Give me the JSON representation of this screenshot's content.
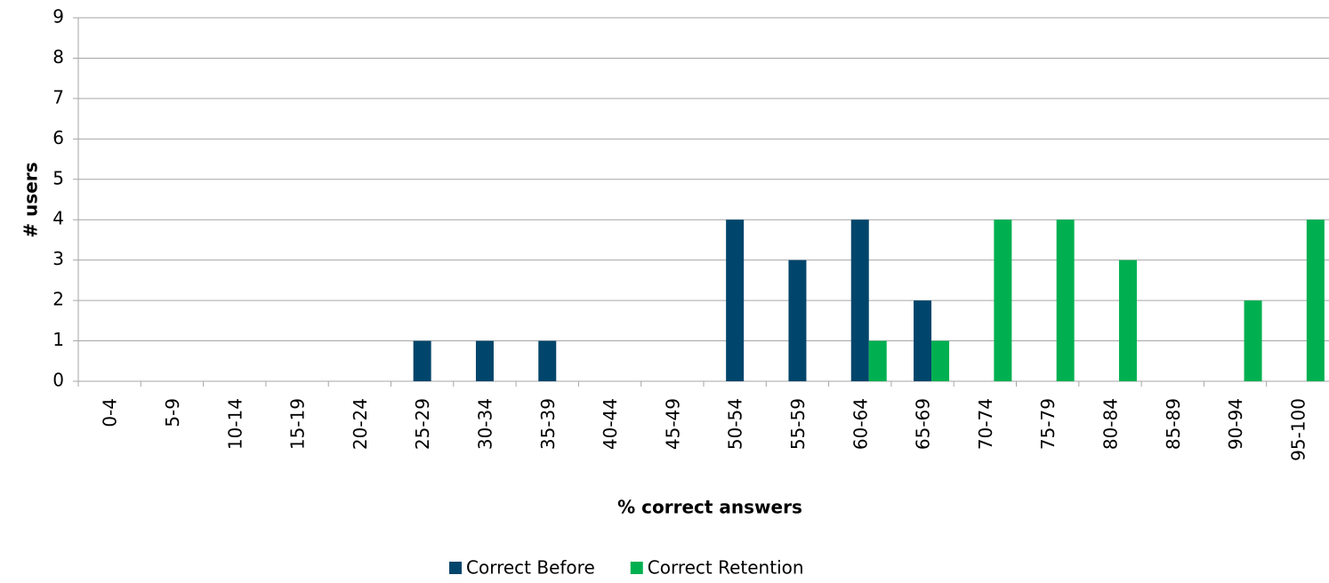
{
  "chart_data": {
    "type": "bar",
    "xlabel": "% correct answers",
    "ylabel": "# users",
    "categories": [
      "0-4",
      "5-9",
      "10-14",
      "15-19",
      "20-24",
      "25-29",
      "30-34",
      "35-39",
      "40-44",
      "45-49",
      "50-54",
      "55-59",
      "60-64",
      "65-69",
      "70-74",
      "75-79",
      "80-84",
      "85-89",
      "90-94",
      "95-100"
    ],
    "series": [
      {
        "name": "Correct Before",
        "color": "#00456b",
        "values": [
          0,
          0,
          0,
          0,
          0,
          1,
          1,
          1,
          0,
          0,
          4,
          3,
          4,
          2,
          0,
          0,
          0,
          0,
          0,
          0
        ]
      },
      {
        "name": "Correct Retention",
        "color": "#00b050",
        "values": [
          0,
          0,
          0,
          0,
          0,
          0,
          0,
          0,
          0,
          0,
          0,
          0,
          1,
          1,
          4,
          4,
          3,
          0,
          2,
          4
        ]
      }
    ],
    "ylim": [
      0,
      9
    ],
    "yticks": [
      0,
      1,
      2,
      3,
      4,
      5,
      6,
      7,
      8,
      9
    ],
    "grid": true,
    "legend": "bottom"
  }
}
